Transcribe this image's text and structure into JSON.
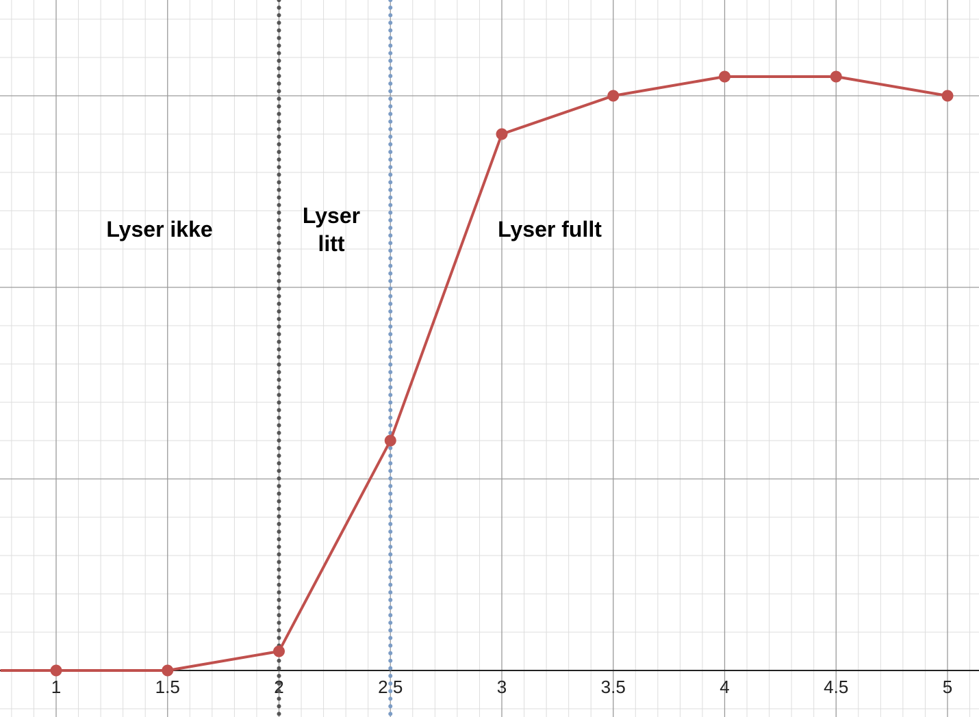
{
  "chart_data": {
    "type": "line",
    "title": "",
    "xlabel": "",
    "ylabel": "",
    "xlim": [
      0.75,
      5.14
    ],
    "ylim": [
      -0.24,
      3.5
    ],
    "grid": true,
    "x_ticks": [
      "1",
      "1.5",
      "2",
      "2.5",
      "3",
      "3.5",
      "4",
      "4.5",
      "5"
    ],
    "series": [
      {
        "color": "#c0504d",
        "x": [
          1,
          1.5,
          2,
          2.5,
          3,
          3.5,
          4,
          4.5,
          5
        ],
        "y": [
          0,
          0,
          0.1,
          1.2,
          2.8,
          3.0,
          3.1,
          3.1,
          3.0
        ]
      }
    ],
    "reference_lines": [
      {
        "x": 2,
        "style": "dotted",
        "color": "#555555"
      },
      {
        "x": 2.5,
        "style": "dotted",
        "color": "#7b9cc6"
      }
    ],
    "annotations": [
      {
        "text": "Lyser ikke"
      },
      {
        "text": "Lyser\nlitt"
      },
      {
        "text": "Lyser fullt"
      }
    ]
  }
}
